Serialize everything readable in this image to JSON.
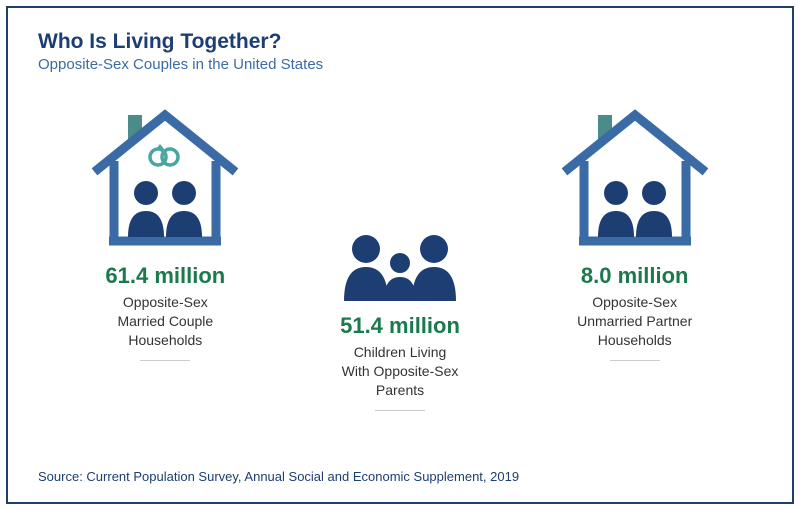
{
  "title": "Who Is Living Together?",
  "subtitle": "Opposite-Sex Couples in the United States",
  "source": "Source: Current Population Survey, Annual Social and Economic Supplement, 2019",
  "colors": {
    "border": "#1d3e72",
    "title": "#1d3e72",
    "subtitle": "#3a6ba5",
    "stat": "#1a7a4c",
    "label": "#333333",
    "house_outline": "#3a6ba5",
    "person_fill": "#1d3e72",
    "ring": "#4aa6a0",
    "chimney": "#4a8c8a"
  },
  "panels": [
    {
      "id": "married",
      "stat": "61.4 million",
      "label": "Opposite-Sex\nMarried Couple\nHouseholds",
      "icon": "house-rings"
    },
    {
      "id": "children",
      "stat": "51.4 million",
      "label": "Children Living\nWith Opposite-Sex\nParents",
      "icon": "family"
    },
    {
      "id": "unmarried",
      "stat": "8.0 million",
      "label": "Opposite-Sex\nUnmarried Partner\nHouseholds",
      "icon": "house-plain"
    }
  ],
  "typography": {
    "title_fontsize": 21,
    "subtitle_fontsize": 15,
    "stat_fontsize": 22,
    "label_fontsize": 14,
    "source_fontsize": 13
  }
}
